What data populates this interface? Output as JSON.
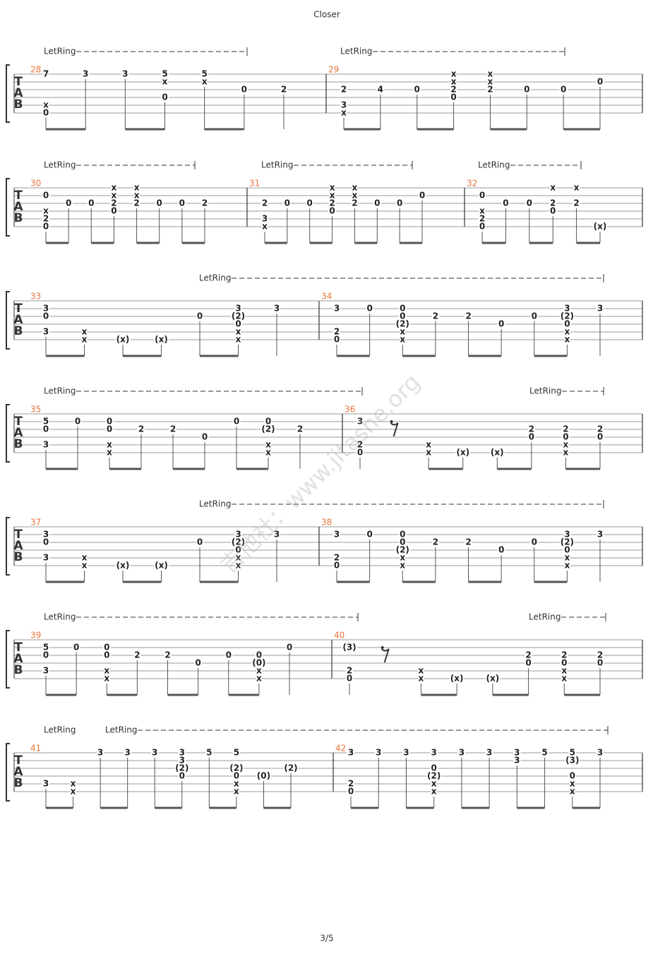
{
  "header": {
    "title": "Closer"
  },
  "tab_clef": [
    "T",
    "A",
    "B"
  ],
  "systems": [
    {
      "let_ring": [
        "LetRing",
        "LetRing"
      ],
      "measures": [
        {
          "number": "28",
          "beats": [
            {
              "1": "7",
              "5": "x",
              "6": "0"
            },
            {
              "1": "3"
            },
            {
              "1": "3"
            },
            {
              "1": "5",
              "2": "x",
              "4": "0"
            },
            {
              "1": "5",
              "2": "x"
            },
            {
              "3": "0"
            },
            {
              "3": "2"
            }
          ]
        },
        {
          "number": "29",
          "beats": [
            {
              "3": "2",
              "5": "3",
              "6": "x"
            },
            {
              "3": "4"
            },
            {
              "3": "0"
            },
            {
              "1": "x",
              "2": "x",
              "3": "2",
              "4": "0"
            },
            {
              "1": "x",
              "2": "x",
              "3": "2"
            },
            {
              "3": "0"
            },
            {
              "3": "0"
            },
            {
              "2": "0"
            }
          ]
        }
      ]
    },
    {
      "let_ring": [
        "LetRing",
        "LetRing",
        "LetRing"
      ],
      "measures": [
        {
          "number": "30",
          "beats": [
            {
              "2": "0",
              "4": "x",
              "5": "2",
              "6": "0"
            },
            {
              "3": "0"
            },
            {
              "3": "0"
            },
            {
              "1": "x",
              "2": "x",
              "3": "2",
              "4": "0"
            },
            {
              "1": "x",
              "2": "x",
              "3": "2"
            },
            {
              "3": "0"
            },
            {
              "3": "0"
            },
            {
              "3": "2"
            }
          ]
        },
        {
          "number": "31",
          "beats": [
            {
              "3": "2",
              "5": "3",
              "6": "x"
            },
            {
              "3": "0"
            },
            {
              "3": "0"
            },
            {
              "1": "x",
              "2": "x",
              "3": "2",
              "4": "0"
            },
            {
              "1": "x",
              "2": "x",
              "3": "2"
            },
            {
              "3": "0"
            },
            {
              "3": "0"
            },
            {
              "2": "0"
            }
          ]
        },
        {
          "number": "32",
          "beats": [
            {
              "2": "0",
              "4": "x",
              "5": "2",
              "6": "0"
            },
            {
              "3": "0"
            },
            {
              "3": "0"
            },
            {
              "1": "x",
              "3": "2",
              "4": "0"
            },
            {
              "1": "x",
              "3": "2"
            },
            {
              "6": "(x)"
            }
          ]
        }
      ]
    },
    {
      "let_ring": [
        "LetRing"
      ],
      "measures": [
        {
          "number": "33",
          "beats": [
            {
              "2": "3",
              "3": "0",
              "5": "3"
            },
            {
              "5": "x",
              "6": "x"
            },
            {
              "6": "(x)"
            },
            {
              "6": "(x)"
            },
            {
              "3": "0"
            },
            {
              "2": "3",
              "3": "(2)",
              "4": "0",
              "5": "x",
              "6": "x"
            },
            {
              "2": "3"
            }
          ]
        },
        {
          "number": "34",
          "beats": [
            {
              "2": "3",
              "5": "2",
              "6": "0"
            },
            {
              "2": "0"
            },
            {
              "2": "0",
              "3": "0",
              "4": "(2)",
              "5": "x",
              "6": "x"
            },
            {
              "3": "2"
            },
            {
              "3": "2"
            },
            {
              "4": "0"
            },
            {
              "3": "0"
            },
            {
              "2": "3",
              "3": "(2)",
              "4": "0",
              "5": "x",
              "6": "x"
            },
            {
              "2": "3"
            }
          ]
        }
      ]
    },
    {
      "let_ring": [
        "LetRing",
        "LetRing"
      ],
      "measures": [
        {
          "number": "35",
          "beats": [
            {
              "2": "5",
              "3": "0",
              "5": "3"
            },
            {
              "2": "0"
            },
            {
              "2": "0",
              "3": "0",
              "5": "x",
              "6": "x"
            },
            {
              "3": "2"
            },
            {
              "3": "2"
            },
            {
              "4": "0"
            },
            {
              "2": "0"
            },
            {
              "2": "0",
              "3": "(2)",
              "5": "x",
              "6": "x"
            },
            {
              "3": "2"
            }
          ]
        },
        {
          "number": "36",
          "beats": [
            {
              "2": "3",
              "5": "2",
              "6": "0"
            },
            {},
            {
              "5": "x",
              "6": "x"
            },
            {
              "6": "(x)"
            },
            {
              "6": "(x)"
            },
            {
              "3": "2",
              "4": "0"
            },
            {
              "3": "2",
              "4": "0",
              "5": "x",
              "6": "x"
            },
            {
              "3": "2",
              "4": "0"
            }
          ]
        }
      ]
    },
    {
      "let_ring": [
        "LetRing"
      ],
      "measures": [
        {
          "number": "37",
          "beats": [
            {
              "2": "3",
              "3": "0",
              "5": "3"
            },
            {
              "5": "x",
              "6": "x"
            },
            {
              "6": "(x)"
            },
            {
              "6": "(x)"
            },
            {
              "3": "0"
            },
            {
              "2": "3",
              "3": "(2)",
              "4": "0",
              "5": "x",
              "6": "x"
            },
            {
              "2": "3"
            }
          ]
        },
        {
          "number": "38",
          "beats": [
            {
              "2": "3",
              "5": "2",
              "6": "0"
            },
            {
              "2": "0"
            },
            {
              "2": "0",
              "3": "0",
              "4": "(2)",
              "5": "x",
              "6": "x"
            },
            {
              "3": "2"
            },
            {
              "3": "2"
            },
            {
              "4": "0"
            },
            {
              "3": "0"
            },
            {
              "2": "3",
              "3": "(2)",
              "4": "0",
              "5": "x",
              "6": "x"
            },
            {
              "2": "3"
            }
          ]
        }
      ]
    },
    {
      "let_ring": [
        "LetRing",
        "LetRing"
      ],
      "measures": [
        {
          "number": "39",
          "beats": [
            {
              "2": "5",
              "3": "0",
              "5": "3"
            },
            {
              "2": "0"
            },
            {
              "2": "0",
              "3": "0",
              "5": "x",
              "6": "x"
            },
            {
              "3": "2"
            },
            {
              "3": "2"
            },
            {
              "4": "0"
            },
            {
              "3": "0"
            },
            {
              "3": "0",
              "4": "(0)",
              "5": "x",
              "6": "x"
            },
            {
              "2": "0"
            }
          ]
        },
        {
          "number": "40",
          "beats": [
            {
              "2": "(3)",
              "5": "2",
              "6": "0"
            },
            {},
            {
              "5": "x",
              "6": "x"
            },
            {
              "6": "(x)"
            },
            {
              "6": "(x)"
            },
            {
              "3": "2",
              "4": "0"
            },
            {
              "3": "2",
              "4": "0",
              "5": "x",
              "6": "x"
            },
            {
              "3": "2",
              "4": "0"
            }
          ]
        }
      ]
    },
    {
      "let_ring": [
        "LetRing",
        "LetRing"
      ],
      "measures": [
        {
          "number": "41",
          "beats": [
            {
              "5": "3"
            },
            {
              "5": "x",
              "6": "x"
            },
            {
              "1": "3"
            },
            {
              "1": "3"
            },
            {
              "1": "3"
            },
            {
              "1": "3",
              "2": "3",
              "3": "(2)",
              "4": "0"
            },
            {
              "1": "5"
            },
            {
              "1": "5",
              "3": "(2)",
              "4": "0",
              "5": "x",
              "6": "x"
            },
            {
              "4": "(0)"
            },
            {
              "3": "(2)"
            }
          ]
        },
        {
          "number": "42",
          "beats": [
            {
              "1": "3",
              "5": "2",
              "6": "0"
            },
            {
              "1": "3"
            },
            {
              "1": "3"
            },
            {
              "1": "3",
              "3": "0",
              "4": "(2)",
              "5": "x",
              "6": "x"
            },
            {
              "1": "3"
            },
            {
              "1": "3"
            },
            {
              "1": "3",
              "2": "3"
            },
            {
              "1": "5"
            },
            {
              "1": "5",
              "2": "(3)",
              "4": "0",
              "5": "x",
              "6": "x"
            },
            {
              "1": "3"
            }
          ]
        }
      ]
    }
  ],
  "watermark": "吉他社：www.jitashe.org",
  "footer": {
    "page": "3/5"
  }
}
